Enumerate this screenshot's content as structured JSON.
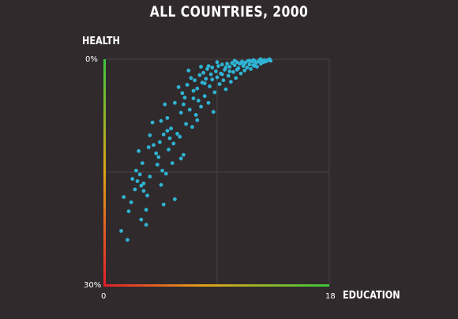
{
  "chart_data": {
    "type": "scatter",
    "title": "ALL COUNTRIES, 2000",
    "xlabel": "EDUCATION",
    "ylabel": "HEALTH",
    "xlim": [
      0,
      18
    ],
    "ylim": [
      30,
      0
    ],
    "x_tick_labels": [
      "0",
      "18"
    ],
    "y_tick_labels": [
      "0%",
      "30%"
    ],
    "grid": true,
    "point_color": "#2fb3d3",
    "axis_colors": {
      "good": "#3cc63a",
      "mid": "#e0a21a",
      "bad": "#e01e2a"
    },
    "points": [
      {
        "x": 1.3,
        "y": 22.8
      },
      {
        "x": 1.5,
        "y": 18.3
      },
      {
        "x": 1.9,
        "y": 20.2
      },
      {
        "x": 2.1,
        "y": 19.0
      },
      {
        "x": 2.4,
        "y": 17.3
      },
      {
        "x": 2.6,
        "y": 16.2
      },
      {
        "x": 2.8,
        "y": 15.3
      },
      {
        "x": 2.5,
        "y": 14.8
      },
      {
        "x": 2.9,
        "y": 16.8
      },
      {
        "x": 3.1,
        "y": 16.5
      },
      {
        "x": 2.9,
        "y": 21.3
      },
      {
        "x": 2.7,
        "y": 12.2
      },
      {
        "x": 3.0,
        "y": 13.8
      },
      {
        "x": 3.1,
        "y": 17.5
      },
      {
        "x": 3.3,
        "y": 20.0
      },
      {
        "x": 3.4,
        "y": 18.1
      },
      {
        "x": 3.5,
        "y": 11.7
      },
      {
        "x": 3.6,
        "y": 10.1
      },
      {
        "x": 3.8,
        "y": 8.4
      },
      {
        "x": 3.9,
        "y": 11.4
      },
      {
        "x": 4.1,
        "y": 12.5
      },
      {
        "x": 4.3,
        "y": 13.0
      },
      {
        "x": 4.4,
        "y": 11.0
      },
      {
        "x": 4.5,
        "y": 16.7
      },
      {
        "x": 4.6,
        "y": 14.8
      },
      {
        "x": 4.7,
        "y": 10.0
      },
      {
        "x": 4.5,
        "y": 8.2
      },
      {
        "x": 4.8,
        "y": 6.0
      },
      {
        "x": 4.9,
        "y": 15.2
      },
      {
        "x": 5.0,
        "y": 7.8
      },
      {
        "x": 5.1,
        "y": 12.0
      },
      {
        "x": 5.2,
        "y": 10.5
      },
      {
        "x": 5.3,
        "y": 9.2
      },
      {
        "x": 5.4,
        "y": 13.8
      },
      {
        "x": 5.5,
        "y": 11.2
      },
      {
        "x": 5.6,
        "y": 5.8
      },
      {
        "x": 5.6,
        "y": 18.6
      },
      {
        "x": 5.8,
        "y": 9.9
      },
      {
        "x": 6.0,
        "y": 10.3
      },
      {
        "x": 6.1,
        "y": 7.1
      },
      {
        "x": 6.2,
        "y": 4.5
      },
      {
        "x": 6.3,
        "y": 12.7
      },
      {
        "x": 6.4,
        "y": 5.1
      },
      {
        "x": 6.5,
        "y": 8.6
      },
      {
        "x": 6.6,
        "y": 3.4
      },
      {
        "x": 6.8,
        "y": 6.7
      },
      {
        "x": 6.9,
        "y": 2.5
      },
      {
        "x": 7.0,
        "y": 9.0
      },
      {
        "x": 7.1,
        "y": 4.2
      },
      {
        "x": 7.2,
        "y": 2.8
      },
      {
        "x": 7.3,
        "y": 7.4
      },
      {
        "x": 7.4,
        "y": 3.9
      },
      {
        "x": 7.5,
        "y": 5.5
      },
      {
        "x": 7.6,
        "y": 2.1
      },
      {
        "x": 7.7,
        "y": 6.3
      },
      {
        "x": 7.8,
        "y": 3.1
      },
      {
        "x": 7.9,
        "y": 1.8
      },
      {
        "x": 8.0,
        "y": 4.9
      },
      {
        "x": 8.1,
        "y": 2.6
      },
      {
        "x": 8.2,
        "y": 1.3
      },
      {
        "x": 8.3,
        "y": 5.8
      },
      {
        "x": 8.4,
        "y": 3.6
      },
      {
        "x": 8.5,
        "y": 2.0
      },
      {
        "x": 8.6,
        "y": 1.1
      },
      {
        "x": 8.7,
        "y": 7.0
      },
      {
        "x": 8.8,
        "y": 4.4
      },
      {
        "x": 8.9,
        "y": 1.6
      },
      {
        "x": 9.0,
        "y": 2.4
      },
      {
        "x": 9.1,
        "y": 0.9
      },
      {
        "x": 9.2,
        "y": 3.3
      },
      {
        "x": 9.3,
        "y": 1.9
      },
      {
        "x": 9.4,
        "y": 0.7
      },
      {
        "x": 9.5,
        "y": 2.8
      },
      {
        "x": 9.6,
        "y": 1.4
      },
      {
        "x": 9.7,
        "y": 4.0
      },
      {
        "x": 9.8,
        "y": 0.6
      },
      {
        "x": 9.9,
        "y": 2.2
      },
      {
        "x": 10.0,
        "y": 1.0
      },
      {
        "x": 10.1,
        "y": 3.0
      },
      {
        "x": 10.2,
        "y": 0.5
      },
      {
        "x": 10.3,
        "y": 1.7
      },
      {
        "x": 10.4,
        "y": 0.8
      },
      {
        "x": 10.5,
        "y": 2.5
      },
      {
        "x": 10.6,
        "y": 0.4
      },
      {
        "x": 10.7,
        "y": 1.2
      },
      {
        "x": 10.8,
        "y": 0.6
      },
      {
        "x": 10.9,
        "y": 1.9
      },
      {
        "x": 11.0,
        "y": 0.3
      },
      {
        "x": 11.1,
        "y": 0.9
      },
      {
        "x": 11.2,
        "y": 1.5
      },
      {
        "x": 11.3,
        "y": 0.4
      },
      {
        "x": 11.4,
        "y": 1.1
      },
      {
        "x": 11.5,
        "y": 0.2
      },
      {
        "x": 11.6,
        "y": 0.7
      },
      {
        "x": 11.7,
        "y": 1.3
      },
      {
        "x": 11.8,
        "y": 0.3
      },
      {
        "x": 11.9,
        "y": 0.8
      },
      {
        "x": 12.0,
        "y": 0.2
      },
      {
        "x": 12.1,
        "y": 0.5
      },
      {
        "x": 12.2,
        "y": 1.0
      },
      {
        "x": 12.3,
        "y": 0.3
      },
      {
        "x": 12.4,
        "y": 0.1
      },
      {
        "x": 12.5,
        "y": 0.6
      },
      {
        "x": 12.6,
        "y": 0.2
      },
      {
        "x": 12.7,
        "y": 0.4
      },
      {
        "x": 12.8,
        "y": 0.1
      },
      {
        "x": 12.9,
        "y": 0.3
      },
      {
        "x": 13.0,
        "y": 0.2
      },
      {
        "x": 13.1,
        "y": 0.1
      },
      {
        "x": 13.3,
        "y": 0.2
      },
      {
        "x": 10.0,
        "y": 1.6
      },
      {
        "x": 10.6,
        "y": 1.4
      },
      {
        "x": 11.2,
        "y": 0.6
      },
      {
        "x": 9.4,
        "y": 2.0
      },
      {
        "x": 8.0,
        "y": 3.2
      },
      {
        "x": 7.1,
        "y": 5.2
      },
      {
        "x": 6.3,
        "y": 6.0
      },
      {
        "x": 5.0,
        "y": 9.5
      },
      {
        "x": 4.2,
        "y": 14.0
      },
      {
        "x": 3.6,
        "y": 15.6
      },
      {
        "x": 2.2,
        "y": 15.9
      },
      {
        "x": 12.0,
        "y": 0.9
      },
      {
        "x": 11.6,
        "y": 0.2
      },
      {
        "x": 10.9,
        "y": 0.5
      },
      {
        "x": 9.7,
        "y": 1.1
      },
      {
        "x": 8.6,
        "y": 2.7
      },
      {
        "x": 7.7,
        "y": 1.0
      },
      {
        "x": 6.7,
        "y": 1.5
      },
      {
        "x": 5.9,
        "y": 3.7
      },
      {
        "x": 7.4,
        "y": 8.1
      },
      {
        "x": 6.1,
        "y": 13.2
      },
      {
        "x": 4.7,
        "y": 19.3
      },
      {
        "x": 12.5,
        "y": 0.0
      },
      {
        "x": 13.2,
        "y": 0.0
      },
      {
        "x": 11.9,
        "y": 0.1
      },
      {
        "x": 10.4,
        "y": 0.2
      },
      {
        "x": 9.0,
        "y": 0.4
      },
      {
        "x": 8.3,
        "y": 0.9
      },
      {
        "x": 3.3,
        "y": 22.0
      },
      {
        "x": 1.8,
        "y": 24.0
      }
    ]
  }
}
